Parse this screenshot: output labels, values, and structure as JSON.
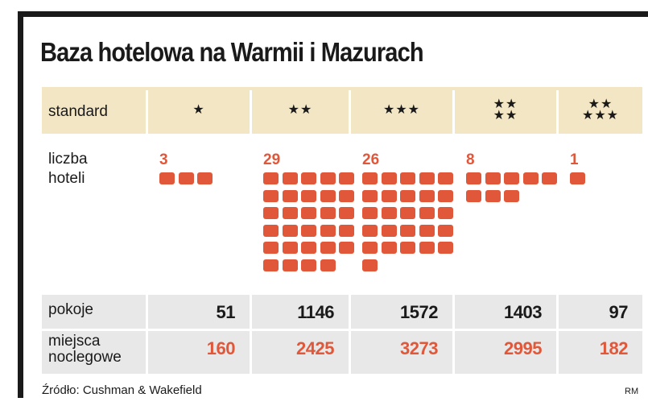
{
  "title": "Baza hotelowa na Warmii i Mazurach",
  "labels": {
    "standard": "standard",
    "hotels_line1": "liczba",
    "hotels_line2": "hoteli",
    "rooms": "pokoje",
    "beds_line1": "miejsca",
    "beds_line2": "noclegowe"
  },
  "source": "Źródło: Cushman & Wakefield",
  "credit": "RM",
  "colors": {
    "accent": "#e0573a",
    "standard_band": "#f3e6c4",
    "bottom_band": "#e8e8e8",
    "text": "#1a1a1a"
  },
  "chart_data": {
    "type": "table",
    "title": "Baza hotelowa na Warmii i Mazurach",
    "categories": [
      "★",
      "★★",
      "★★★",
      "★★★★",
      "★★★★★"
    ],
    "series": [
      {
        "name": "liczba hoteli",
        "values": [
          3,
          29,
          26,
          8,
          1
        ]
      },
      {
        "name": "pokoje",
        "values": [
          51,
          1146,
          1572,
          1403,
          97
        ]
      },
      {
        "name": "miejsca noclegowe",
        "values": [
          160,
          2425,
          3273,
          2995,
          182
        ]
      }
    ]
  }
}
